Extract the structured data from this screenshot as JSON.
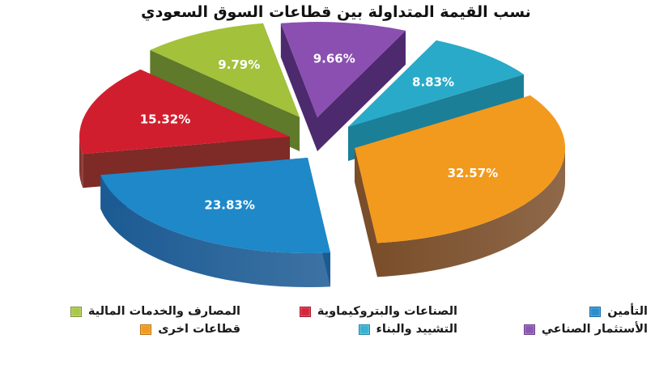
{
  "chart_data": {
    "type": "pie",
    "title": "نسب القيمة المتداولة بين قطاعات السوق السعودي",
    "style": "3d-exploded",
    "categories": [
      "الأستثمار الصناعي",
      "التشييد والبناء",
      "قطاعات اخرى",
      "التأمين",
      "الصناعات والبتروكيماوية",
      "المصارف والخدمات المالية"
    ],
    "values": [
      9.66,
      8.83,
      32.57,
      23.83,
      15.32,
      9.79
    ],
    "labels": [
      "9.66%",
      "8.83%",
      "32.57%",
      "23.83%",
      "15.32%",
      "9.79%"
    ],
    "colors": [
      "#8a4fb0",
      "#29aac8",
      "#f29a1e",
      "#1e88c9",
      "#d11e2e",
      "#a3c13a"
    ],
    "side_colors": [
      "#4d2a6e",
      "#1b7f98",
      "#7a4e2a",
      "#1b5a93",
      "#7e2a26",
      "#5f7a2a"
    ],
    "legend_position": "bottom"
  },
  "title": "نسب القيمة المتداولة بين قطاعات السوق السعودي",
  "legend": {
    "rows": [
      [
        {
          "label": "التأمين",
          "color": "#2a8fd0"
        },
        {
          "label": "الصناعات والبتروكيماوية",
          "color": "#d6243a"
        },
        {
          "label": "المصارف والخدمات المالية",
          "color": "#a9c84a"
        }
      ],
      [
        {
          "label": "الأستثمار الصناعي",
          "color": "#8a57b5"
        },
        {
          "label": "التشييد والبناء",
          "color": "#35b3d3"
        },
        {
          "label": "قطاعات اخرى",
          "color": "#f29a1e"
        }
      ]
    ]
  }
}
